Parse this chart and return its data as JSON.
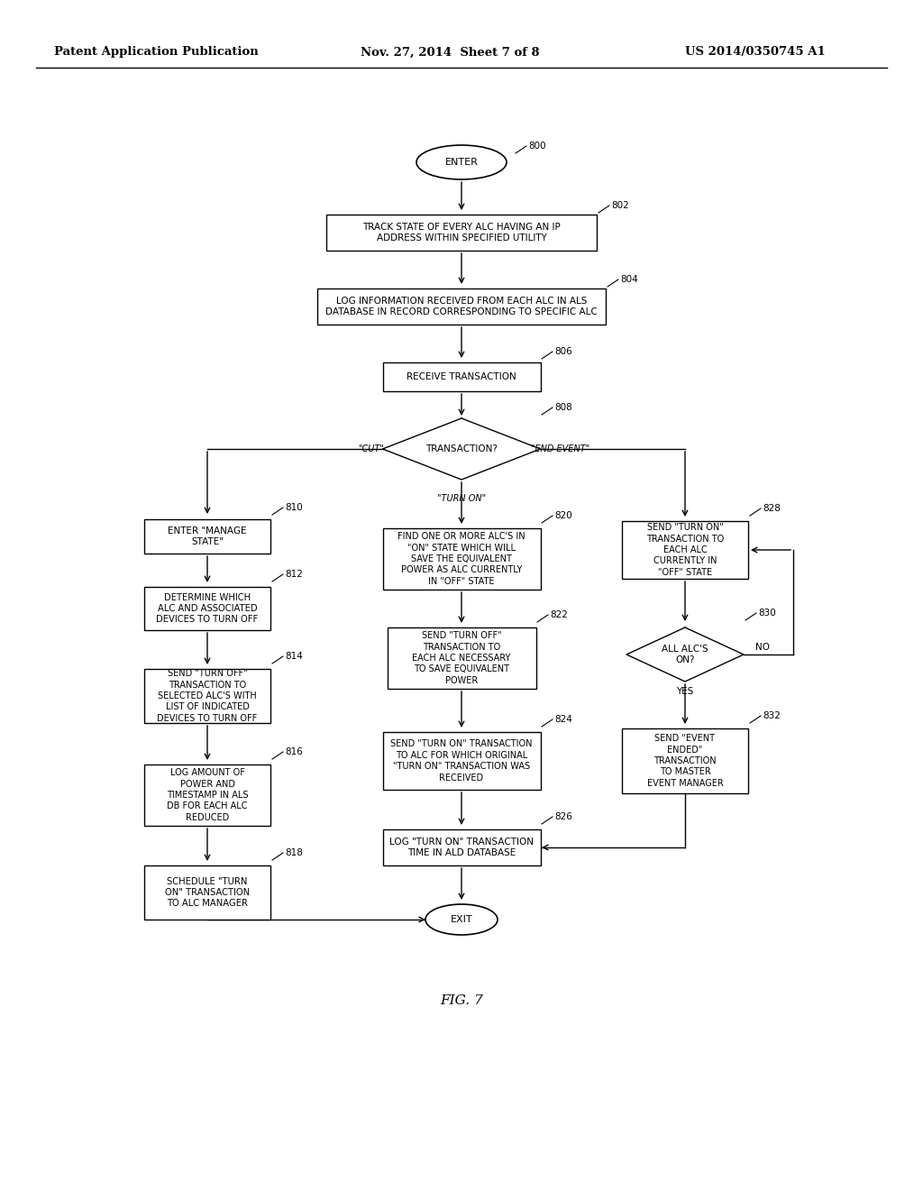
{
  "title_left": "Patent Application Publication",
  "title_mid": "Nov. 27, 2014  Sheet 7 of 8",
  "title_right": "US 2014/0350745 A1",
  "fig_label": "FIG. 7",
  "background": "#ffffff",
  "line_color": "#000000",
  "box_fill": "#ffffff",
  "text_color": "#000000"
}
